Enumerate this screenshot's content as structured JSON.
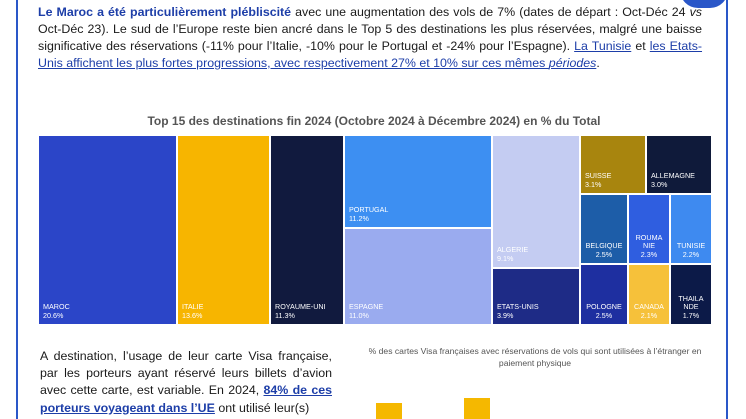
{
  "intro": {
    "p1_bold": "Le Maroc a été particulièrement plébliscité",
    "p1_a": " avec une augmentation des vols de 7% (dates de départ : Oct-Déc 24 ",
    "p1_vs": "vs",
    "p1_b": " Oct-Déc 23). Le sud de l’Europe reste bien ancré dans le Top 5 des destinations les plus réservées, malgré une baisse significative des réservations (-11% pour l’Italie, -10% pour le Portugal et -24% pour l’Espagne). ",
    "link1": "La Tunisie",
    "p1_and": " et ",
    "link2": "les Etats-Unis",
    "p1_c": " affichent les plus fortes progressions, avec respectivement 27% et 10% sur ces mêmes ",
    "p1_periodes": "périodes",
    "p1_end": "."
  },
  "treemap": {
    "title": "Top 15 des destinations fin 2024 (Octobre 2024 à Décembre 2024) en % du Total",
    "tiles": [
      {
        "name": "MAROC",
        "value": "20.6%",
        "color": "#2b45c8"
      },
      {
        "name": "ITALIE",
        "value": "13.6%",
        "color": "#f7b500"
      },
      {
        "name": "ROYAUME-UNI",
        "value": "11.3%",
        "color": "#111a3e"
      },
      {
        "name": "PORTUGAL",
        "value": "11.2%",
        "color": "#3d8ff2"
      },
      {
        "name": "ESPAGNE",
        "value": "11.0%",
        "color": "#9aabef"
      },
      {
        "name": "ALGERIE",
        "value": "9.1%",
        "color": "#c4ccf2"
      },
      {
        "name": "ETATS-UNIS",
        "value": "3.9%",
        "color": "#1e2b86"
      },
      {
        "name": "SUISSE",
        "value": "3.1%",
        "color": "#a8850e"
      },
      {
        "name": "ALLEMAGNE",
        "value": "3.0%",
        "color": "#0f1a3a"
      },
      {
        "name": "BELGIQUE",
        "value": "2.5%",
        "color": "#1d5da8"
      },
      {
        "name": "ROUMA\nNIE",
        "value": "2.3%",
        "color": "#2f5ee0"
      },
      {
        "name": "TUNISIE",
        "value": "2.2%",
        "color": "#3e8af0"
      },
      {
        "name": "POLOGNE",
        "value": "2.5%",
        "color": "#1e2fa0"
      },
      {
        "name": "CANADA",
        "value": "2.1%",
        "color": "#f6c13a"
      },
      {
        "name": "THAILA\nNDE",
        "value": "1.7%",
        "color": "#0c1a48"
      }
    ]
  },
  "outro": {
    "p2_a": "A destination, l’usage de leur carte Visa française, par les porteurs ayant réservé leurs billets d’avion avec cette carte, est variable. En 2024, ",
    "p2_bold": "84% de ces porteurs voyageant dans l’UE",
    "p2_b": " ont utilisé leur(s)"
  },
  "chart2": {
    "title": "% des cartes Visa françaises avec réservations de vols qui sont utilisées à l’étranger en paiement physique",
    "bar_color": "#f5b800"
  }
}
